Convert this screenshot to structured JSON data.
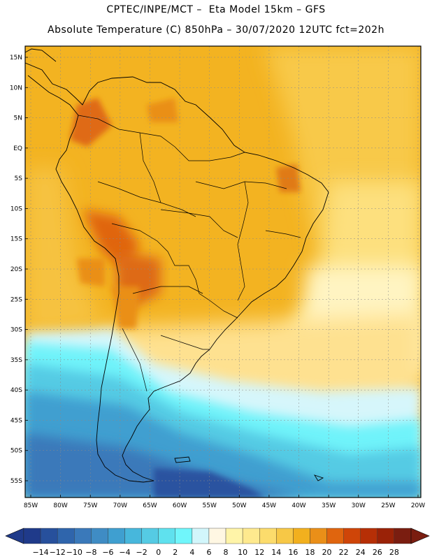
{
  "header": {
    "line1": "CPTEC/INPE/MCT –  Eta Model 15km – GFS",
    "line2": "Absolute Temperature (C) 850hPa – 30/07/2020 12UTC fct=202h"
  },
  "map": {
    "region": "South America",
    "lat_labels": [
      "15N",
      "10N",
      "5N",
      "EQ",
      "5S",
      "10S",
      "15S",
      "20S",
      "25S",
      "30S",
      "35S",
      "40S",
      "45S",
      "50S",
      "55S"
    ],
    "lon_labels": [
      "85W",
      "80W",
      "75W",
      "70W",
      "65W",
      "60W",
      "55W",
      "50W",
      "45W",
      "40W",
      "35W",
      "30W",
      "25W",
      "20W"
    ]
  },
  "colorbar": {
    "ticks": [
      "-14",
      "-12",
      "-10",
      "-8",
      "-6",
      "-4",
      "-2",
      "0",
      "2",
      "4",
      "6",
      "8",
      "10",
      "12",
      "14",
      "16",
      "18",
      "20",
      "22",
      "24",
      "26",
      "28"
    ],
    "colors": [
      "#1f3a8a",
      "#27509c",
      "#2f65ac",
      "#3a79ba",
      "#3f8cc4",
      "#3f9fd0",
      "#47b7dc",
      "#55cbe4",
      "#5fe1ee",
      "#70f6fb",
      "#d2f6fb",
      "#fff7e3",
      "#fff4a8",
      "#fee98e",
      "#fcdc6c",
      "#f7c846",
      "#f2b01e",
      "#ea8f18",
      "#e0650e",
      "#cf4508",
      "#b62f06",
      "#9a2207",
      "#7a1d10"
    ]
  }
}
